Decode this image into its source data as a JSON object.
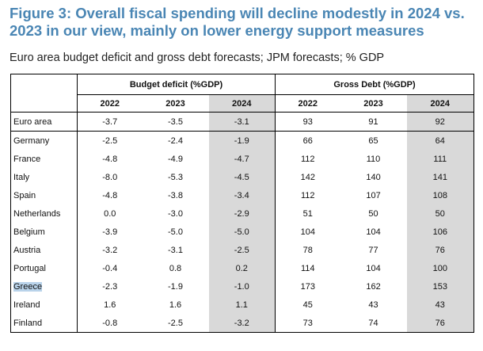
{
  "figure": {
    "title": "Figure 3: Overall fiscal spending will decline modestly in 2024 vs. 2023 in our view, mainly on lower energy support measures",
    "subtitle": "Euro area budget deficit and gross debt forecasts; JPM forecasts; % GDP"
  },
  "chart_data": {
    "type": "table",
    "groups": [
      {
        "name": "Budget deficit (%GDP)",
        "years": [
          "2022",
          "2023",
          "2024"
        ]
      },
      {
        "name": "Gross Debt (%GDP)",
        "years": [
          "2022",
          "2023",
          "2024"
        ]
      }
    ],
    "rows": [
      {
        "country": "Euro area",
        "deficit": [
          "-3.7",
          "-3.5",
          "-3.1"
        ],
        "debt": [
          "93",
          "91",
          "92"
        ]
      },
      {
        "country": "Germany",
        "deficit": [
          "-2.5",
          "-2.4",
          "-1.9"
        ],
        "debt": [
          "66",
          "65",
          "64"
        ]
      },
      {
        "country": "France",
        "deficit": [
          "-4.8",
          "-4.9",
          "-4.7"
        ],
        "debt": [
          "112",
          "110",
          "111"
        ]
      },
      {
        "country": "Italy",
        "deficit": [
          "-8.0",
          "-5.3",
          "-4.5"
        ],
        "debt": [
          "142",
          "140",
          "141"
        ]
      },
      {
        "country": "Spain",
        "deficit": [
          "-4.8",
          "-3.8",
          "-3.4"
        ],
        "debt": [
          "112",
          "107",
          "108"
        ]
      },
      {
        "country": "Netherlands",
        "deficit": [
          "0.0",
          "-3.0",
          "-2.9"
        ],
        "debt": [
          "51",
          "50",
          "50"
        ]
      },
      {
        "country": "Belgium",
        "deficit": [
          "-3.9",
          "-5.0",
          "-5.0"
        ],
        "debt": [
          "104",
          "104",
          "106"
        ]
      },
      {
        "country": "Austria",
        "deficit": [
          "-3.2",
          "-3.1",
          "-2.5"
        ],
        "debt": [
          "78",
          "77",
          "76"
        ]
      },
      {
        "country": "Portugal",
        "deficit": [
          "-0.4",
          "0.8",
          "0.2"
        ],
        "debt": [
          "114",
          "104",
          "100"
        ]
      },
      {
        "country": "Greece",
        "deficit": [
          "-2.3",
          "-1.9",
          "-1.0"
        ],
        "debt": [
          "173",
          "162",
          "153"
        ]
      },
      {
        "country": "Ireland",
        "deficit": [
          "1.6",
          "1.6",
          "1.1"
        ],
        "debt": [
          "45",
          "43",
          "43"
        ]
      },
      {
        "country": "Finland",
        "deficit": [
          "-0.8",
          "-2.5",
          "-3.2"
        ],
        "debt": [
          "73",
          "74",
          "76"
        ]
      }
    ],
    "shaded_year": "2024",
    "highlighted_row": "Greece"
  }
}
